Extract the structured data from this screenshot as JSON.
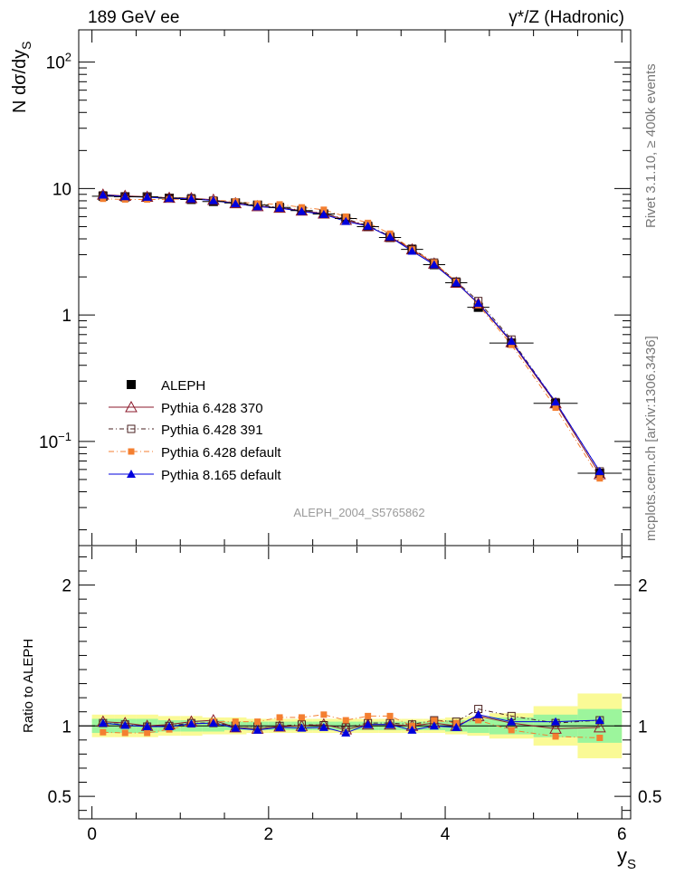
{
  "header": {
    "left_title": "189 GeV ee",
    "right_title": "γ*/Z (Hadronic)"
  },
  "side_labels": {
    "rivet": "Rivet 3.1.10, ≥ 400k events",
    "mcplots": "mcplots.cern.ch [arXiv:1306.3436]"
  },
  "chart_data": {
    "type": "scatter",
    "analysis_label": "ALEPH_2004_S5765862",
    "xlabel": "y",
    "xlabel_sub": "S",
    "xlim": [
      -0.15,
      6.1
    ],
    "x_ticks": [
      "0",
      "2",
      "4",
      "6"
    ],
    "x_tick_values": [
      0,
      2,
      4,
      6
    ],
    "main": {
      "ylabel": "N dσ/dy",
      "ylabel_sub": "S",
      "yscale": "log",
      "ylim": [
        0.015,
        180
      ],
      "y_ticks": [
        {
          "value": 0.1,
          "base": "10",
          "exp": "−1"
        },
        {
          "value": 1,
          "base": "1",
          "exp": ""
        },
        {
          "value": 10,
          "base": "10",
          "exp": ""
        },
        {
          "value": 100,
          "base": "10",
          "exp": "2"
        }
      ]
    },
    "ratio": {
      "ylabel": "Ratio to ALEPH",
      "ylim": [
        0.34,
        2.28
      ],
      "y_ticks": [
        "0.5",
        "1",
        "2"
      ],
      "y_tick_values": [
        0.5,
        1,
        2
      ]
    },
    "x": [
      0.125,
      0.375,
      0.625,
      0.875,
      1.125,
      1.375,
      1.625,
      1.875,
      2.125,
      2.375,
      2.625,
      2.875,
      3.125,
      3.375,
      3.625,
      3.875,
      4.125,
      4.375,
      4.75,
      5.25,
      5.75
    ],
    "bin_edges": [
      0,
      0.25,
      0.5,
      0.75,
      1,
      1.25,
      1.5,
      1.75,
      2,
      2.25,
      2.5,
      2.75,
      3,
      3.25,
      3.5,
      3.75,
      4,
      4.25,
      4.5,
      5,
      5.5,
      6
    ],
    "data_values": [
      8.7,
      8.6,
      8.6,
      8.4,
      8.2,
      7.9,
      7.7,
      7.4,
      7.1,
      6.7,
      6.3,
      5.8,
      5.0,
      4.1,
      3.3,
      2.5,
      1.8,
      1.15,
      0.6,
      0.2,
      0.056
    ],
    "band_green": [
      0.05,
      0.05,
      0.05,
      0.04,
      0.04,
      0.04,
      0.03,
      0.03,
      0.03,
      0.03,
      0.03,
      0.03,
      0.03,
      0.03,
      0.03,
      0.03,
      0.04,
      0.05,
      0.06,
      0.08,
      0.12
    ],
    "band_yellow": [
      0.08,
      0.08,
      0.08,
      0.07,
      0.07,
      0.06,
      0.06,
      0.05,
      0.05,
      0.05,
      0.05,
      0.05,
      0.05,
      0.05,
      0.05,
      0.05,
      0.06,
      0.07,
      0.09,
      0.14,
      0.23
    ],
    "series": [
      {
        "name": "ALEPH",
        "color": "#000000",
        "marker": "square-filled",
        "dash": "",
        "values": [
          8.7,
          8.6,
          8.6,
          8.4,
          8.2,
          7.9,
          7.7,
          7.4,
          7.1,
          6.7,
          6.3,
          5.8,
          5.0,
          4.1,
          3.3,
          2.5,
          1.8,
          1.15,
          0.6,
          0.2,
          0.056
        ]
      },
      {
        "name": "Pythia 6.428 370",
        "color": "#8b1a2b",
        "marker": "triangle-open",
        "dash": "",
        "values": [
          8.95,
          8.75,
          8.6,
          8.45,
          8.4,
          8.15,
          7.65,
          7.25,
          7.05,
          6.7,
          6.35,
          5.65,
          5.05,
          4.15,
          3.3,
          2.55,
          1.8,
          1.23,
          0.61,
          0.2,
          0.055
        ],
        "ratio": [
          1.03,
          1.02,
          1.0,
          1.01,
          1.03,
          1.04,
          0.99,
          0.98,
          0.995,
          1.0,
          1.01,
          0.975,
          1.01,
          1.01,
          1.0,
          1.02,
          1.0,
          1.07,
          1.02,
          0.98,
          0.99
        ]
      },
      {
        "name": "Pythia 6.428 391",
        "color": "#4a2020",
        "marker": "square-open",
        "dash": "5,3,1,3",
        "values": [
          8.85,
          8.7,
          8.6,
          8.45,
          8.4,
          8.05,
          7.7,
          7.4,
          7.1,
          6.75,
          6.35,
          5.75,
          5.1,
          4.2,
          3.35,
          2.6,
          1.84,
          1.29,
          0.64,
          0.205,
          0.058
        ],
        "ratio": [
          1.02,
          1.01,
          0.995,
          1.0,
          1.02,
          1.02,
          1.0,
          0.995,
          1.0,
          1.01,
          1.005,
          0.99,
          1.02,
          1.02,
          1.01,
          1.04,
          1.03,
          1.12,
          1.07,
          1.02,
          1.04
        ]
      },
      {
        "name": "Pythia 6.428 default",
        "color": "#f47f30",
        "marker": "square-filled-small",
        "dash": "6,3,1,3",
        "values": [
          8.3,
          8.2,
          8.2,
          8.2,
          8.3,
          8.1,
          7.9,
          7.6,
          7.5,
          7.1,
          6.8,
          6.0,
          5.35,
          4.4,
          3.3,
          2.6,
          1.83,
          1.2,
          0.58,
          0.185,
          0.051
        ],
        "ratio": [
          0.955,
          0.95,
          0.95,
          0.975,
          1.01,
          1.03,
          1.03,
          1.03,
          1.06,
          1.06,
          1.08,
          1.04,
          1.07,
          1.07,
          1.0,
          1.04,
          1.02,
          1.04,
          0.97,
          0.925,
          0.915
        ]
      },
      {
        "name": "Pythia 8.165 default",
        "color": "#0000dd",
        "marker": "triangle-filled",
        "dash": "",
        "values": [
          8.9,
          8.65,
          8.55,
          8.35,
          8.3,
          8.05,
          7.6,
          7.2,
          7.0,
          6.6,
          6.25,
          5.5,
          5.05,
          4.15,
          3.2,
          2.5,
          1.8,
          1.24,
          0.62,
          0.205,
          0.058
        ],
        "ratio": [
          1.02,
          1.005,
          0.995,
          0.995,
          1.015,
          1.02,
          0.985,
          0.97,
          0.99,
          0.985,
          0.99,
          0.95,
          1.01,
          1.01,
          0.97,
          1.0,
          0.99,
          1.08,
          1.03,
          1.03,
          1.04
        ]
      }
    ]
  }
}
